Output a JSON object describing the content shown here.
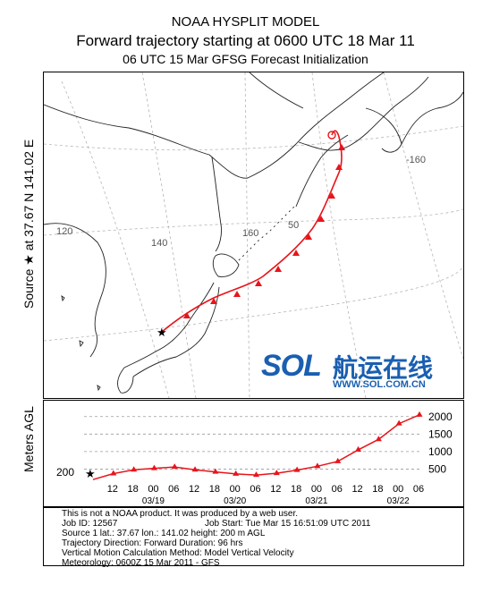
{
  "header": {
    "title1": "NOAA HYSPLIT MODEL",
    "title2": "Forward trajectory starting at 0600 UTC 18 Mar 11",
    "title3": "06 UTC 15 Mar    GFSG  Forecast Initialization"
  },
  "side": {
    "source_label": "Source ★ at   37.67 N  141.02 E",
    "alt_label": "Meters AGL"
  },
  "map": {
    "grid_labels": [
      "120",
      "140",
      "160",
      "-160",
      "50"
    ],
    "trajectory_color": "#e8141a"
  },
  "altitude": {
    "start_value": "200",
    "y_ticks": [
      "2000",
      "1500",
      "1000",
      "500"
    ],
    "hours": [
      "12",
      "18",
      "00",
      "06",
      "12",
      "18",
      "00",
      "06",
      "12",
      "18",
      "00",
      "06",
      "12",
      "18",
      "00",
      "06"
    ],
    "dates": [
      "03/19",
      "03/20",
      "03/21",
      "03/22"
    ]
  },
  "chart_data": {
    "type": "line",
    "title": "",
    "xlabel": "",
    "ylabel": "Meters AGL",
    "x_hours": [
      0,
      6,
      12,
      18,
      24,
      30,
      36,
      42,
      48,
      54,
      60,
      66,
      72,
      78,
      84,
      90,
      96
    ],
    "values": [
      200,
      370,
      480,
      520,
      560,
      480,
      420,
      360,
      330,
      380,
      470,
      580,
      720,
      1050,
      1350,
      1800,
      2050
    ],
    "ylim": [
      0,
      2250
    ],
    "start_label": "200"
  },
  "info": {
    "line1": "This is not a NOAA product. It was produced by a web user.",
    "line2a": "Job ID: 12567",
    "line2b": "Job Start: Tue Mar 15 16:51:09 UTC 2011",
    "line3": "Source 1        lat.: 37.67    lon.: 141.02    height: 200 m AGL",
    "line4": "Trajectory Direction: Forward      Duration: 96 hrs",
    "line5": "Vertical Motion Calculation Method:      Model Vertical Velocity",
    "line6": "Meteorology: 0600Z 15 Mar 2011 - GFS"
  },
  "logo": {
    "sol": "SOL",
    "chinese": "航运在线",
    "url": "WWW.SOL.COM.CN",
    "color": "#1a5fb0",
    "accent": "#f08a1c"
  }
}
